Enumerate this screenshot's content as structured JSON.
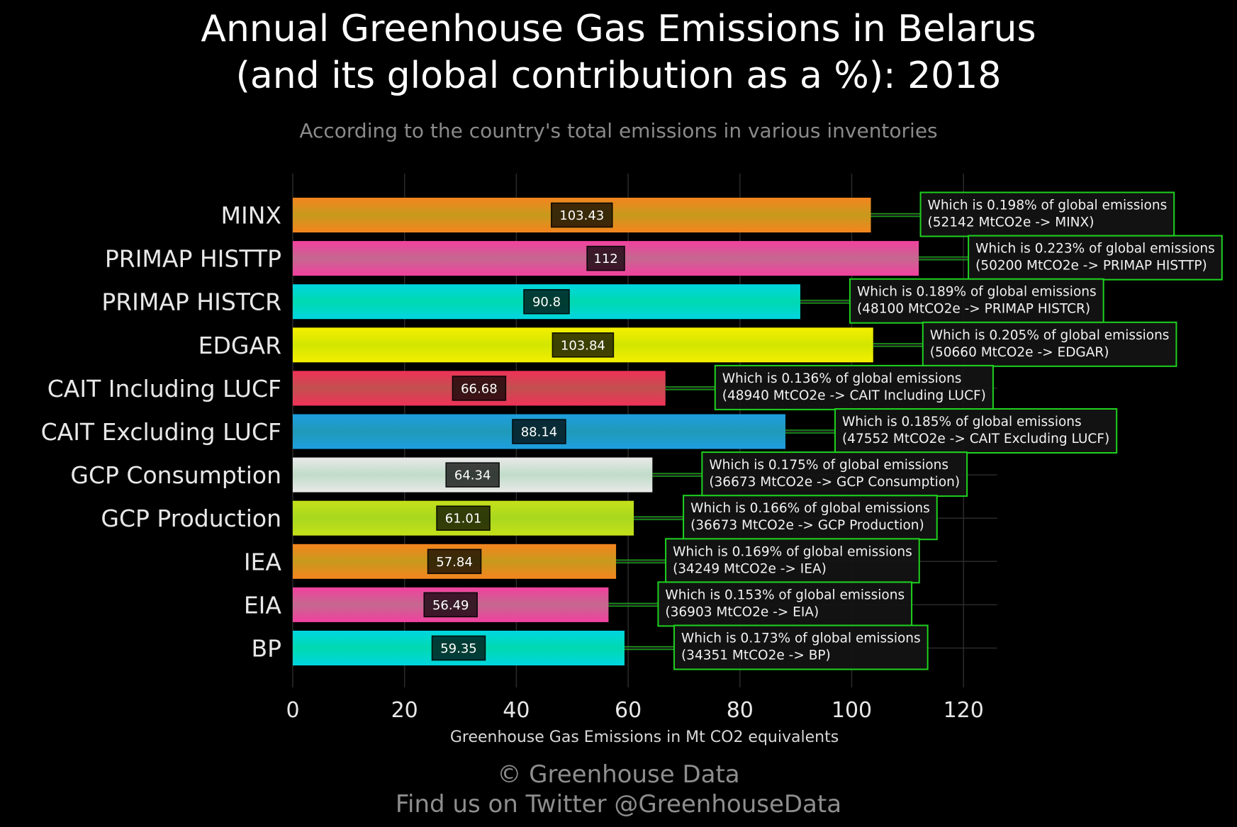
{
  "title": "Annual Greenhouse Gas Emissions in Belarus\n(and its global contribution as a %): 2018",
  "subtitle": "According to the country's total emissions in various inventories",
  "footer": {
    "line1": "© Greenhouse Data",
    "line2": "Find us on Twitter @GreenhouseData"
  },
  "colors": {
    "background": "#000000",
    "annotation_border": "#1fd11f",
    "connector": "#22c822"
  },
  "chart_data": {
    "type": "bar",
    "orientation": "horizontal",
    "title": "Annual Greenhouse Gas Emissions in Belarus\n(and its global contribution as a %): 2018",
    "subtitle": "According to the country's total emissions in various inventories",
    "xlabel": "Greenhouse Gas Emissions in Mt CO2 equivalents",
    "ylabel": "",
    "xlim": [
      0,
      126
    ],
    "xticks": [
      0,
      20,
      40,
      60,
      80,
      100,
      120
    ],
    "grid": true,
    "categories": [
      "MINX",
      "PRIMAP HISTTP",
      "PRIMAP HISTCR",
      "EDGAR",
      "CAIT Including LUCF",
      "CAIT Excluding LUCF",
      "GCP Consumption",
      "GCP Production",
      "IEA",
      "EIA",
      "BP"
    ],
    "values": [
      103.43,
      112,
      90.8,
      103.84,
      66.68,
      88.14,
      64.34,
      61.01,
      57.84,
      56.49,
      59.35
    ],
    "value_labels": [
      "103.43",
      "112",
      "90.8",
      "103.84",
      "66.68",
      "88.14",
      "64.34",
      "61.01",
      "57.84",
      "56.49",
      "59.35"
    ],
    "bar_colors": [
      [
        "#c79a1c",
        "#f5841f"
      ],
      [
        "#c5688f",
        "#f2409f"
      ],
      [
        "#00d9b0",
        "#00d6e0"
      ],
      [
        "#d2e600",
        "#f5ef00"
      ],
      [
        "#c25050",
        "#ef3258"
      ],
      [
        "#209ab8",
        "#1d9ee0"
      ],
      [
        "#c0dcc8",
        "#e9e9e9"
      ],
      [
        "#a8d81e",
        "#c5e01a"
      ],
      [
        "#c79a1c",
        "#f5841f"
      ],
      [
        "#c5688f",
        "#f2409f"
      ],
      [
        "#00d9b0",
        "#00d6e0"
      ]
    ],
    "annotations": [
      {
        "line1": "Which is 0.198% of global emissions",
        "line2": "(52142 MtCO2e -> MINX)"
      },
      {
        "line1": "Which is 0.223% of global emissions",
        "line2": "(50200 MtCO2e -> PRIMAP HISTTP)"
      },
      {
        "line1": "Which is 0.189% of global emissions",
        "line2": "(48100 MtCO2e -> PRIMAP HISTCR)"
      },
      {
        "line1": "Which is 0.205% of global emissions",
        "line2": "(50660 MtCO2e -> EDGAR)"
      },
      {
        "line1": "Which is 0.136% of global emissions",
        "line2": "(48940 MtCO2e -> CAIT Including LUCF)"
      },
      {
        "line1": "Which is 0.185% of global emissions",
        "line2": "(47552 MtCO2e -> CAIT Excluding LUCF)"
      },
      {
        "line1": "Which is 0.175% of global emissions",
        "line2": "(36673 MtCO2e -> GCP Consumption)"
      },
      {
        "line1": "Which is 0.166% of global emissions",
        "line2": "(36673 MtCO2e -> GCP Production)"
      },
      {
        "line1": "Which is 0.169% of global emissions",
        "line2": "(34249 MtCO2e -> IEA)"
      },
      {
        "line1": "Which is 0.153% of global emissions",
        "line2": "(36903 MtCO2e -> EIA)"
      },
      {
        "line1": "Which is 0.173% of global emissions",
        "line2": "(34351 MtCO2e -> BP)"
      }
    ]
  }
}
